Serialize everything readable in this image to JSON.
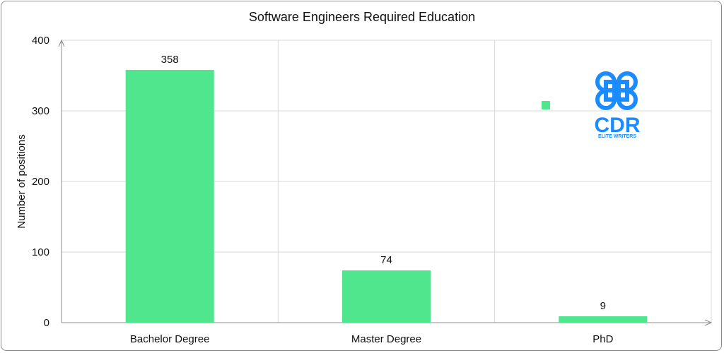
{
  "chart_data": {
    "type": "bar",
    "title": "Software Engineers Required Education",
    "ylabel": "Number of positions",
    "xlabel": "",
    "categories": [
      "Bachelor Degree",
      "Master Degree",
      "PhD"
    ],
    "values": [
      358,
      74,
      9
    ],
    "data_labels": [
      "358",
      "74",
      "9"
    ],
    "ylim": [
      0,
      400
    ],
    "yticks": [
      "0",
      "100",
      "200",
      "300",
      "400"
    ],
    "grid": true,
    "legend": "none",
    "bar_color": "#50e68e"
  },
  "watermark": {
    "brand": "CDR",
    "tagline": "ELITE WRITERS",
    "color": "#1a8cff",
    "icon": "command-key-icon"
  }
}
